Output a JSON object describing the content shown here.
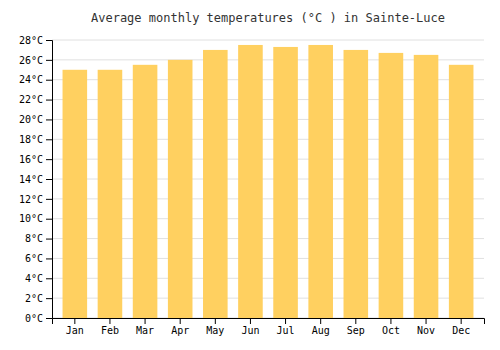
{
  "chart_data": {
    "type": "bar",
    "title": "Average monthly temperatures (°C ) in Sainte-Luce",
    "categories": [
      "Jan",
      "Feb",
      "Mar",
      "Apr",
      "May",
      "Jun",
      "Jul",
      "Aug",
      "Sep",
      "Oct",
      "Nov",
      "Dec"
    ],
    "values": [
      25.0,
      25.0,
      25.5,
      26.0,
      27.0,
      27.5,
      27.3,
      27.5,
      27.0,
      26.7,
      26.5,
      25.5
    ],
    "color": "#FFD060",
    "ylim": [
      0,
      28
    ],
    "yticks": [
      {
        "value": 0,
        "label": "0°C"
      },
      {
        "value": 2,
        "label": "2°C"
      },
      {
        "value": 4,
        "label": "4°C"
      },
      {
        "value": 6,
        "label": "6°C"
      },
      {
        "value": 8,
        "label": "8°C"
      },
      {
        "value": 10,
        "label": "10°C"
      },
      {
        "value": 12,
        "label": "12°C"
      },
      {
        "value": 14,
        "label": "14°C"
      },
      {
        "value": 16,
        "label": "16°C"
      },
      {
        "value": 18,
        "label": "18°C"
      },
      {
        "value": 20,
        "label": "20°C"
      },
      {
        "value": 22,
        "label": "22°C"
      },
      {
        "value": 24,
        "label": "24°C"
      },
      {
        "value": 26,
        "label": "26°C"
      },
      {
        "value": 28,
        "label": "28°C"
      }
    ],
    "grid": true
  }
}
